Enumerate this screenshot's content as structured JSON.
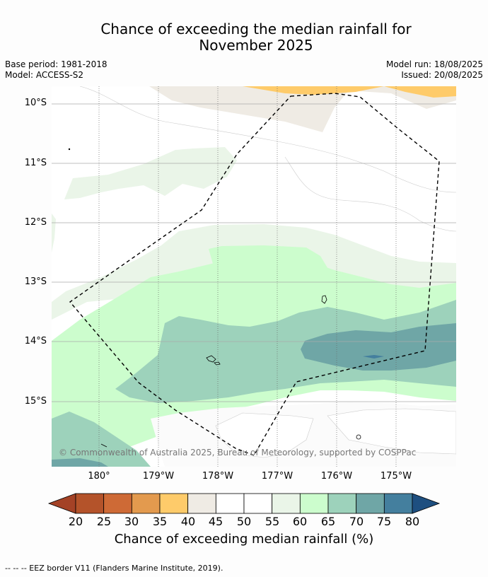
{
  "title_line1": "Chance of exceeding the median rainfall for",
  "title_line2": "November 2025",
  "base_period": "Base period: 1981-2018",
  "model": "Model: ACCESS-S2",
  "model_run": "Model run: 18/08/2025",
  "issued": "Issued: 20/08/2025",
  "lat_labels": [
    "10°S",
    "11°S",
    "12°S",
    "13°S",
    "14°S",
    "15°S"
  ],
  "lon_labels": [
    "180°",
    "179°W",
    "178°W",
    "177°W",
    "176°W",
    "175°W"
  ],
  "copyright": "© Commonwealth of Australia 2025, Bureau of Meteorology, supported by COSPPac",
  "colorbar": {
    "ticks": [
      "20",
      "25",
      "30",
      "35",
      "40",
      "45",
      "50",
      "55",
      "60",
      "65",
      "70",
      "75",
      "80"
    ],
    "colors": [
      "#b4532a",
      "#ce6a36",
      "#e39a4e",
      "#fecb6a",
      "#efebe4",
      "#ffffff",
      "#ffffff",
      "#eaf5e8",
      "#ccfdcd",
      "#9dd2bb",
      "#6fa6a6",
      "#447f9e"
    ],
    "under_color": "#a44226",
    "over_color": "#1e4f80",
    "label": "Chance of exceeding median rainfall (%)"
  },
  "legend_footer": "--  --  -- EEZ border V11 (Flanders Marine Institute, 2019)."
}
